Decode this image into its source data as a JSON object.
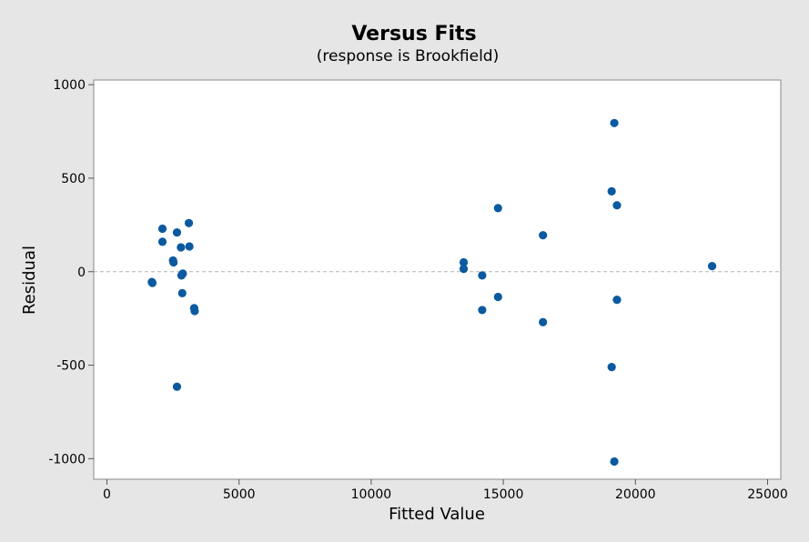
{
  "chart_data": {
    "type": "scatter",
    "title": "Versus Fits",
    "subtitle": "(response is Brookfield)",
    "xlabel": "Fitted Value",
    "ylabel": "Residual",
    "xlim": [
      -500,
      25500
    ],
    "ylim": [
      -1110,
      1025
    ],
    "xticks": [
      0,
      5000,
      10000,
      15000,
      20000,
      25000
    ],
    "xtick_labels": [
      "0",
      "5000",
      "10000",
      "15000",
      "20000",
      "25000"
    ],
    "yticks": [
      -1000,
      -500,
      0,
      500,
      1000
    ],
    "ytick_labels": [
      "-1000",
      "-500",
      "0",
      "500",
      "1000"
    ],
    "reference_line_y": 0,
    "grid": false,
    "point_color": "#0b5aa0",
    "points": [
      {
        "x": 1700,
        "y": -55
      },
      {
        "x": 1720,
        "y": -60
      },
      {
        "x": 2100,
        "y": 230
      },
      {
        "x": 2100,
        "y": 160
      },
      {
        "x": 2500,
        "y": 60
      },
      {
        "x": 2520,
        "y": 50
      },
      {
        "x": 2650,
        "y": 210
      },
      {
        "x": 2650,
        "y": -615
      },
      {
        "x": 2800,
        "y": 130
      },
      {
        "x": 2820,
        "y": -20
      },
      {
        "x": 2870,
        "y": -10
      },
      {
        "x": 2850,
        "y": -115
      },
      {
        "x": 3100,
        "y": 260
      },
      {
        "x": 3120,
        "y": 135
      },
      {
        "x": 3300,
        "y": -195
      },
      {
        "x": 3320,
        "y": -210
      },
      {
        "x": 13500,
        "y": 50
      },
      {
        "x": 13500,
        "y": 15
      },
      {
        "x": 14200,
        "y": -20
      },
      {
        "x": 14200,
        "y": -205
      },
      {
        "x": 14800,
        "y": 340
      },
      {
        "x": 14800,
        "y": -135
      },
      {
        "x": 16500,
        "y": 195
      },
      {
        "x": 16500,
        "y": -270
      },
      {
        "x": 19100,
        "y": 430
      },
      {
        "x": 19100,
        "y": -510
      },
      {
        "x": 19200,
        "y": 795
      },
      {
        "x": 19200,
        "y": -1015
      },
      {
        "x": 19300,
        "y": 355
      },
      {
        "x": 19300,
        "y": -150
      },
      {
        "x": 22900,
        "y": 30
      }
    ]
  }
}
